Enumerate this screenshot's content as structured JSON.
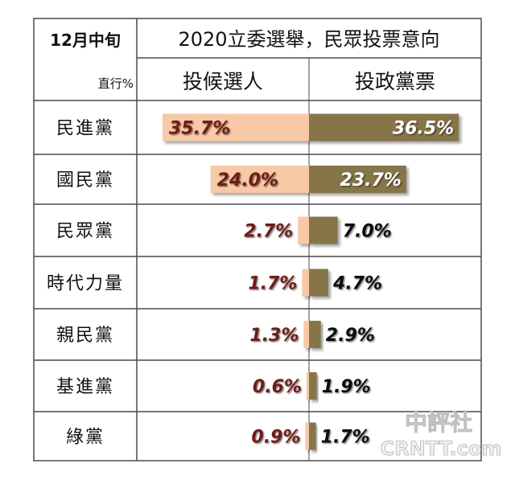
{
  "header": {
    "corner_top": "12月中旬",
    "corner_bottom": "直行%",
    "title": "2020立委選舉，民眾投票意向",
    "col_left": "投候選人",
    "col_right": "投政黨票"
  },
  "watermark": {
    "line1": "中評社",
    "line2": "CRNTT.com"
  },
  "colors": {
    "candidate": "#f8c9a6",
    "party": "#857549",
    "candidate_text": "#6e1b12",
    "party_text_inside": "#ffffff",
    "party_text_outside": "#111111",
    "grid": "#4a4a4a"
  },
  "chart_data": {
    "type": "bar",
    "title": "2020立委選舉，民眾投票意向",
    "categories": [
      "民進黨",
      "國民黨",
      "民眾黨",
      "時代力量",
      "親民黨",
      "基進黨",
      "綠黨"
    ],
    "series": [
      {
        "name": "投候選人",
        "values": [
          35.7,
          24.0,
          2.7,
          1.7,
          1.3,
          0.6,
          0.9
        ],
        "labels": [
          "35.7%",
          "24.0%",
          "2.7%",
          "1.7%",
          "1.3%",
          "0.6%",
          "0.9%"
        ]
      },
      {
        "name": "投政黨票",
        "values": [
          36.5,
          23.7,
          7.0,
          4.7,
          2.9,
          1.9,
          1.7
        ],
        "labels": [
          "36.5%",
          "23.7%",
          "7.0%",
          "4.7%",
          "2.9%",
          "1.9%",
          "1.7%"
        ]
      }
    ],
    "ylim": [
      0,
      40
    ]
  }
}
